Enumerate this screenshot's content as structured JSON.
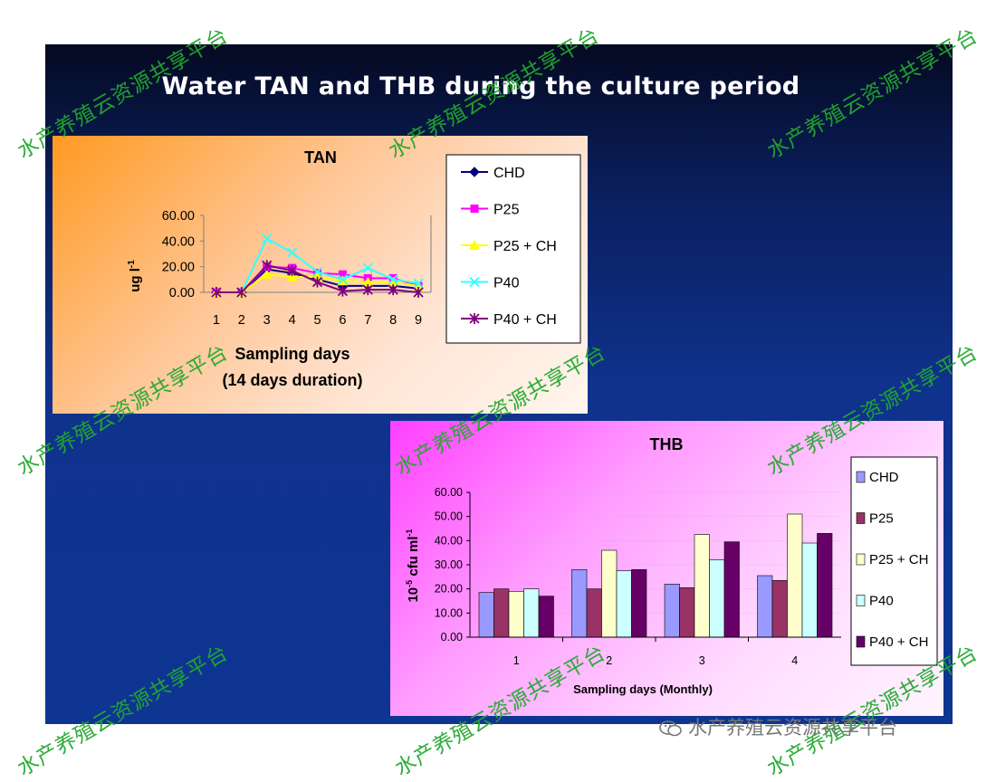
{
  "slide": {
    "title": "Water TAN and THB during the culture period"
  },
  "watermark": {
    "text": "水产养殖云资源共享平台",
    "color": "#22a82e"
  },
  "wechat": {
    "label": "水产养殖云资源共享平台"
  },
  "chart_data": [
    {
      "type": "line",
      "title": "TAN",
      "xlabel": "Sampling days",
      "xlabel2": "(14 days duration)",
      "ylabel": "ug l",
      "ylabel_sup": "-1",
      "ylim": [
        0,
        60
      ],
      "yticks": [
        "60.00",
        "40.00",
        "20.00",
        "0.00"
      ],
      "yticks_values": [
        60,
        40,
        20,
        0
      ],
      "categories": [
        "1",
        "2",
        "3",
        "4",
        "5",
        "6",
        "7",
        "8",
        "9"
      ],
      "legend_position": "right",
      "series": [
        {
          "name": "CHD",
          "color": "#000080",
          "marker": "diamond",
          "values": [
            0,
            0,
            18,
            15,
            10,
            5,
            5,
            5,
            3
          ]
        },
        {
          "name": "P25",
          "color": "#ff00ff",
          "marker": "square",
          "values": [
            0,
            0,
            20,
            19,
            15,
            14,
            11,
            11,
            5
          ]
        },
        {
          "name": "P25 + CH",
          "color": "#ffff00",
          "marker": "triangle",
          "values": [
            0,
            0,
            14,
            12,
            12,
            9,
            8,
            8,
            5
          ]
        },
        {
          "name": "P40",
          "color": "#33ffff",
          "marker": "x",
          "values": [
            0,
            0,
            42,
            31,
            16,
            10,
            19,
            10,
            7
          ]
        },
        {
          "name": "P40 + CH",
          "color": "#800080",
          "marker": "star",
          "values": [
            0,
            0,
            21,
            17,
            8,
            1,
            2,
            2,
            0
          ]
        }
      ]
    },
    {
      "type": "bar",
      "title": "THB",
      "xlabel": "Sampling days (Monthly)",
      "ylabel_pre": "10",
      "ylabel_sup": "-5",
      "ylabel_mid": " cfu ml",
      "ylabel_sup2": "-1",
      "ylim": [
        0,
        60
      ],
      "yticks": [
        "60.00",
        "50.00",
        "40.00",
        "30.00",
        "20.00",
        "10.00",
        "0.00"
      ],
      "yticks_values": [
        60,
        50,
        40,
        30,
        20,
        10,
        0
      ],
      "categories": [
        "1",
        "2",
        "3",
        "4"
      ],
      "legend_position": "right",
      "series": [
        {
          "name": "CHD",
          "color": "#9999ff",
          "values": [
            18.5,
            28,
            22,
            25.5
          ]
        },
        {
          "name": "P25",
          "color": "#993366",
          "values": [
            20,
            20,
            20.5,
            23.5
          ]
        },
        {
          "name": "P25 + CH",
          "color": "#ffffcc",
          "values": [
            19,
            36,
            42.5,
            51
          ]
        },
        {
          "name": "P40",
          "color": "#ccffff",
          "values": [
            20,
            27.5,
            32,
            39
          ]
        },
        {
          "name": "P40 + CH",
          "color": "#660066",
          "values": [
            17,
            28,
            39.5,
            43
          ]
        }
      ]
    }
  ]
}
